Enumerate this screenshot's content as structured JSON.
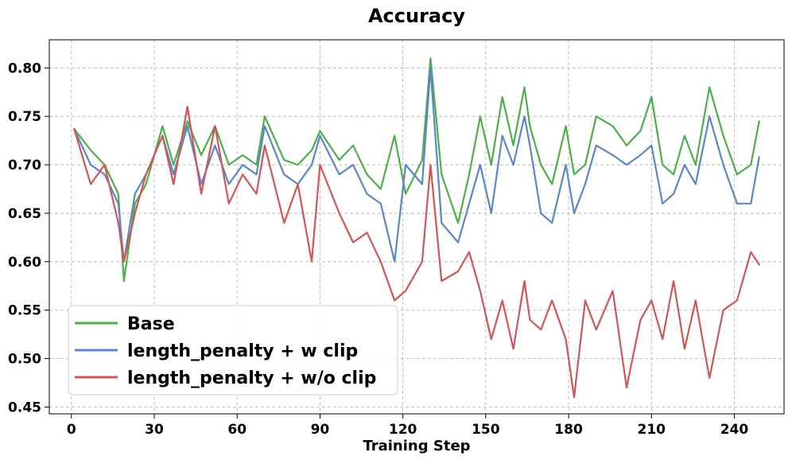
{
  "chart_data": {
    "type": "line",
    "title": "Accuracy",
    "xlabel": "Training Step",
    "ylabel": "",
    "xlim": [
      -8,
      258
    ],
    "ylim": [
      0.443,
      0.829
    ],
    "x_ticks": [
      0,
      30,
      60,
      90,
      120,
      150,
      180,
      210,
      240
    ],
    "y_ticks": [
      0.45,
      0.5,
      0.55,
      0.6,
      0.65,
      0.7,
      0.75,
      0.8
    ],
    "x_tick_labels": [
      "0",
      "30",
      "60",
      "90",
      "120",
      "150",
      "180",
      "210",
      "240"
    ],
    "y_tick_labels": [
      "0.45",
      "0.50",
      "0.55",
      "0.60",
      "0.65",
      "0.70",
      "0.75",
      "0.80"
    ],
    "grid": true,
    "legend_position": "lower-left",
    "series": [
      {
        "name": "Base",
        "color": "#4daf4a",
        "x": [
          1,
          7,
          12,
          17,
          19,
          23,
          27,
          33,
          37,
          42,
          47,
          52,
          57,
          62,
          67,
          70,
          77,
          82,
          87,
          90,
          97,
          102,
          107,
          112,
          117,
          121,
          127,
          130,
          134,
          140,
          144,
          148,
          152,
          156,
          160,
          164,
          166,
          170,
          174,
          179,
          182,
          186,
          190,
          196,
          201,
          206,
          210,
          214,
          218,
          222,
          226,
          231,
          236,
          241,
          246,
          249
        ],
        "values": [
          0.737,
          0.715,
          0.7,
          0.67,
          0.58,
          0.66,
          0.68,
          0.74,
          0.7,
          0.745,
          0.71,
          0.74,
          0.7,
          0.71,
          0.7,
          0.75,
          0.705,
          0.7,
          0.715,
          0.735,
          0.705,
          0.72,
          0.69,
          0.675,
          0.73,
          0.67,
          0.705,
          0.81,
          0.69,
          0.64,
          0.69,
          0.75,
          0.7,
          0.77,
          0.72,
          0.78,
          0.74,
          0.7,
          0.68,
          0.74,
          0.69,
          0.7,
          0.75,
          0.74,
          0.72,
          0.735,
          0.77,
          0.7,
          0.69,
          0.73,
          0.7,
          0.78,
          0.73,
          0.69,
          0.7,
          0.745
        ]
      },
      {
        "name": "length_penalty + w clip",
        "color": "#5a86c8",
        "x": [
          1,
          7,
          12,
          17,
          19,
          23,
          27,
          33,
          37,
          42,
          47,
          52,
          57,
          62,
          67,
          70,
          77,
          82,
          87,
          90,
          97,
          102,
          107,
          112,
          117,
          121,
          127,
          130,
          134,
          140,
          144,
          148,
          152,
          156,
          160,
          164,
          166,
          170,
          174,
          179,
          182,
          186,
          190,
          196,
          201,
          206,
          210,
          214,
          218,
          222,
          226,
          231,
          236,
          241,
          246,
          249
        ],
        "values": [
          0.737,
          0.7,
          0.69,
          0.66,
          0.6,
          0.67,
          0.69,
          0.73,
          0.69,
          0.74,
          0.68,
          0.72,
          0.68,
          0.7,
          0.69,
          0.74,
          0.69,
          0.68,
          0.7,
          0.73,
          0.69,
          0.7,
          0.67,
          0.66,
          0.6,
          0.7,
          0.68,
          0.8,
          0.64,
          0.62,
          0.66,
          0.7,
          0.65,
          0.73,
          0.7,
          0.75,
          0.72,
          0.65,
          0.64,
          0.7,
          0.65,
          0.68,
          0.72,
          0.71,
          0.7,
          0.71,
          0.72,
          0.66,
          0.67,
          0.7,
          0.68,
          0.75,
          0.7,
          0.66,
          0.66,
          0.708
        ]
      },
      {
        "name": "length_penalty + w/o clip",
        "color": "#d05555",
        "x": [
          1,
          7,
          12,
          17,
          19,
          23,
          27,
          33,
          37,
          42,
          47,
          52,
          57,
          62,
          67,
          70,
          77,
          82,
          87,
          90,
          97,
          102,
          107,
          112,
          117,
          121,
          127,
          130,
          134,
          140,
          144,
          148,
          152,
          156,
          160,
          164,
          166,
          170,
          174,
          179,
          182,
          186,
          190,
          196,
          201,
          206,
          210,
          214,
          218,
          222,
          226,
          231,
          236,
          241,
          246,
          249
        ],
        "values": [
          0.737,
          0.68,
          0.7,
          0.64,
          0.6,
          0.65,
          0.69,
          0.73,
          0.68,
          0.76,
          0.67,
          0.74,
          0.66,
          0.69,
          0.67,
          0.72,
          0.64,
          0.68,
          0.6,
          0.7,
          0.65,
          0.62,
          0.63,
          0.6,
          0.56,
          0.57,
          0.6,
          0.7,
          0.58,
          0.59,
          0.61,
          0.57,
          0.52,
          0.56,
          0.51,
          0.58,
          0.54,
          0.53,
          0.56,
          0.52,
          0.46,
          0.56,
          0.53,
          0.57,
          0.47,
          0.54,
          0.56,
          0.52,
          0.58,
          0.51,
          0.56,
          0.48,
          0.55,
          0.56,
          0.61,
          0.597
        ]
      }
    ]
  }
}
